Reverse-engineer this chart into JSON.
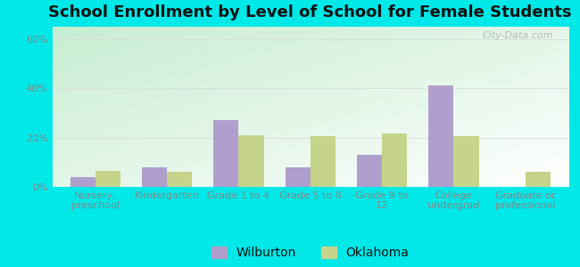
{
  "title": "School Enrollment by Level of School for Female Students",
  "categories": [
    "Nursery,\npreschool",
    "Kindergarten",
    "Grade 1 to 4",
    "Grade 5 to 8",
    "Grade 9 to\n12",
    "College\nundergrad",
    "Graduate or\nprofessional"
  ],
  "wilburton": [
    4,
    8,
    27,
    8,
    13,
    41,
    0
  ],
  "oklahoma": [
    6.5,
    6,
    21,
    20.5,
    21.5,
    20.5,
    6
  ],
  "wilburton_color": "#b09fcc",
  "oklahoma_color": "#c5d48a",
  "background_outer": "#00e8e8",
  "ylim": [
    0,
    65
  ],
  "yticks": [
    0,
    20,
    40,
    60
  ],
  "ytick_labels": [
    "0%",
    "20%",
    "40%",
    "60%"
  ],
  "bar_width": 0.35,
  "legend_labels": [
    "Wilburton",
    "Oklahoma"
  ],
  "title_fontsize": 13,
  "tick_fontsize": 8,
  "legend_fontsize": 10,
  "grid_color": "#dddddd",
  "tick_color": "#888888",
  "watermark": "City-Data.com"
}
